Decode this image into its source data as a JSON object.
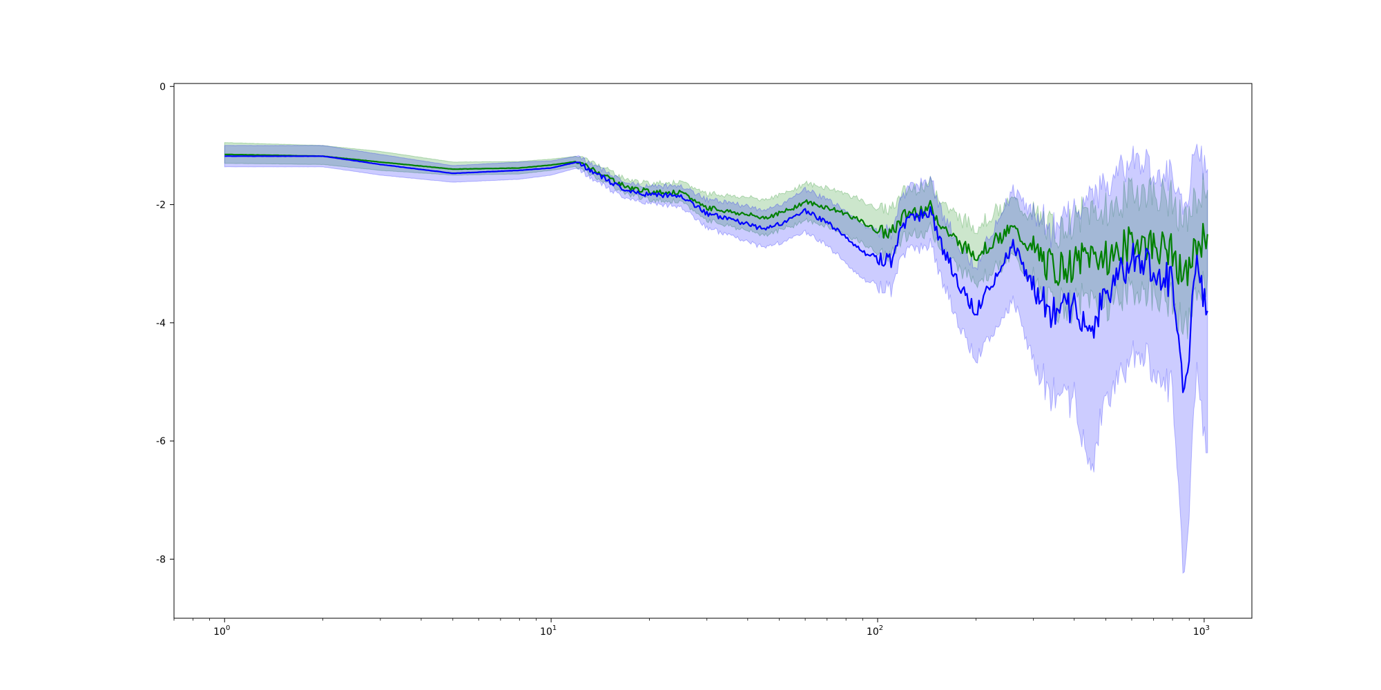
{
  "chart_data": {
    "type": "line",
    "xscale": "log",
    "xlim": [
      0.7,
      1400
    ],
    "ylim": [
      -9.0,
      0.05
    ],
    "grid": false,
    "x_ticks": [
      {
        "value": 1,
        "base": "10",
        "exp": "0"
      },
      {
        "value": 10,
        "base": "10",
        "exp": "1"
      },
      {
        "value": 100,
        "base": "10",
        "exp": "2"
      },
      {
        "value": 1000,
        "base": "10",
        "exp": "3"
      }
    ],
    "y_ticks": [
      {
        "value": 0,
        "label": "0"
      },
      {
        "value": -2,
        "label": "-2"
      },
      {
        "value": -4,
        "label": "-4"
      },
      {
        "value": -6,
        "label": "-6"
      },
      {
        "value": -8,
        "label": "-8"
      }
    ],
    "series": [
      {
        "color": "#008000",
        "band_color": "#008000",
        "x": [
          1,
          2,
          3,
          5,
          8,
          10,
          12,
          14,
          17,
          20,
          25,
          30,
          38,
          45,
          52,
          60,
          70,
          80,
          90,
          100,
          110,
          120,
          130,
          145,
          160,
          180,
          200,
          230,
          260,
          300,
          350,
          400,
          450,
          500,
          550,
          600,
          700,
          800,
          870,
          950,
          1024
        ],
        "values": [
          -1.15,
          -1.18,
          -1.28,
          -1.4,
          -1.38,
          -1.33,
          -1.27,
          -1.45,
          -1.7,
          -1.78,
          -1.8,
          -2.05,
          -2.15,
          -2.22,
          -2.12,
          -1.95,
          -2.05,
          -2.15,
          -2.3,
          -2.45,
          -2.5,
          -2.2,
          -2.1,
          -2.05,
          -2.4,
          -2.7,
          -2.85,
          -2.6,
          -2.4,
          -2.8,
          -3.1,
          -3.0,
          -2.85,
          -2.9,
          -2.8,
          -2.6,
          -2.7,
          -2.8,
          -3.3,
          -2.7,
          -2.5
        ],
        "lower": [
          -1.3,
          -1.32,
          -1.42,
          -1.5,
          -1.48,
          -1.42,
          -1.35,
          -1.55,
          -1.8,
          -1.9,
          -1.95,
          -2.25,
          -2.4,
          -2.5,
          -2.4,
          -2.25,
          -2.35,
          -2.5,
          -2.65,
          -2.8,
          -2.85,
          -2.55,
          -2.45,
          -2.4,
          -2.75,
          -3.1,
          -3.25,
          -3.05,
          -2.85,
          -3.3,
          -3.65,
          -3.6,
          -3.5,
          -3.6,
          -3.5,
          -3.35,
          -3.45,
          -3.55,
          -4.1,
          -3.4,
          -3.2
        ],
        "upper": [
          -0.95,
          -1.0,
          -1.1,
          -1.28,
          -1.27,
          -1.23,
          -1.18,
          -1.33,
          -1.58,
          -1.65,
          -1.63,
          -1.82,
          -1.88,
          -1.92,
          -1.82,
          -1.65,
          -1.72,
          -1.82,
          -1.95,
          -2.08,
          -2.12,
          -1.82,
          -1.73,
          -1.68,
          -2.02,
          -2.28,
          -2.42,
          -2.15,
          -1.95,
          -2.28,
          -2.52,
          -2.38,
          -2.18,
          -2.18,
          -2.08,
          -1.82,
          -1.92,
          -2.02,
          -2.45,
          -1.98,
          -1.75
        ],
        "lw": 2.2
      },
      {
        "color": "#0000ff",
        "band_color": "#0000ff",
        "x": [
          1,
          2,
          3,
          5,
          8,
          10,
          12,
          14,
          17,
          20,
          25,
          30,
          38,
          45,
          52,
          60,
          70,
          80,
          90,
          100,
          110,
          120,
          130,
          145,
          160,
          180,
          200,
          230,
          260,
          300,
          350,
          400,
          450,
          500,
          550,
          600,
          700,
          800,
          870,
          950,
          1024
        ],
        "values": [
          -1.18,
          -1.18,
          -1.32,
          -1.47,
          -1.42,
          -1.38,
          -1.28,
          -1.5,
          -1.78,
          -1.83,
          -1.85,
          -2.15,
          -2.3,
          -2.42,
          -2.3,
          -2.1,
          -2.3,
          -2.55,
          -2.8,
          -2.9,
          -2.95,
          -2.35,
          -2.2,
          -2.1,
          -2.8,
          -3.4,
          -3.8,
          -3.2,
          -2.7,
          -3.4,
          -3.9,
          -3.7,
          -4.2,
          -3.5,
          -3.2,
          -2.9,
          -3.1,
          -3.3,
          -5.2,
          -3.0,
          -3.8
        ],
        "lower": [
          -1.36,
          -1.36,
          -1.5,
          -1.62,
          -1.57,
          -1.5,
          -1.38,
          -1.62,
          -1.9,
          -1.97,
          -2.02,
          -2.38,
          -2.58,
          -2.72,
          -2.62,
          -2.45,
          -2.68,
          -2.98,
          -3.25,
          -3.35,
          -3.4,
          -2.82,
          -2.7,
          -2.62,
          -3.35,
          -4.05,
          -4.55,
          -4.05,
          -3.6,
          -4.6,
          -5.25,
          -5.2,
          -6.5,
          -5.2,
          -4.9,
          -4.4,
          -4.7,
          -5.0,
          -8.3,
          -4.8,
          -6.2
        ],
        "upper": [
          -1.0,
          -1.0,
          -1.15,
          -1.34,
          -1.28,
          -1.26,
          -1.18,
          -1.38,
          -1.66,
          -1.7,
          -1.69,
          -1.92,
          -2.02,
          -2.12,
          -1.98,
          -1.75,
          -1.92,
          -2.12,
          -2.35,
          -2.45,
          -2.5,
          -1.88,
          -1.7,
          -1.58,
          -2.25,
          -2.75,
          -3.05,
          -2.35,
          -1.8,
          -2.2,
          -2.55,
          -2.2,
          -1.9,
          -1.8,
          -1.5,
          -1.3,
          -1.5,
          -1.6,
          -2.1,
          -1.2,
          -1.4
        ],
        "lw": 2.2
      }
    ]
  }
}
